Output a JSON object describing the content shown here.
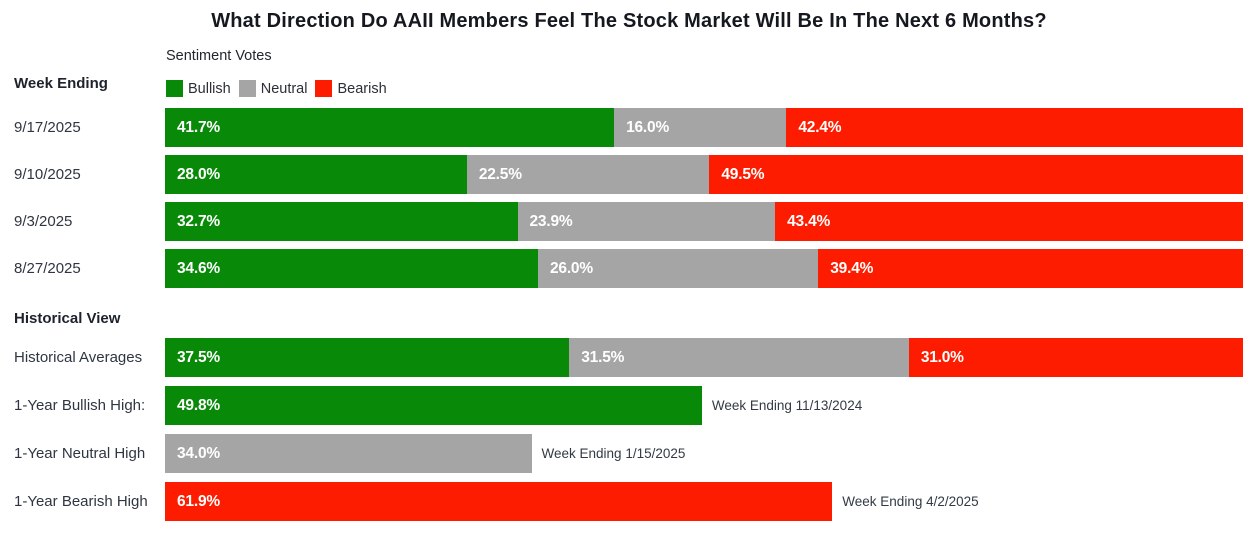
{
  "title": "What Direction Do AAII Members Feel The Stock Market Will Be In The Next 6 Months?",
  "legend": {
    "title": "Sentiment Votes",
    "items": [
      {
        "label": "Bullish",
        "color": "#088a08"
      },
      {
        "label": "Neutral",
        "color": "#a5a5a5"
      },
      {
        "label": "Bearish",
        "color": "#fd1c00"
      }
    ]
  },
  "chart_data": {
    "type": "bar",
    "orientation": "horizontal",
    "stacked": true,
    "title": "What Direction Do AAII Members Feel The Stock Market Will Be In The Next 6 Months?",
    "legend_title": "Sentiment Votes",
    "legend_position": "top-left",
    "series_names": [
      "Bullish",
      "Neutral",
      "Bearish"
    ],
    "series_colors": {
      "Bullish": "#088a08",
      "Neutral": "#a5a5a5",
      "Bearish": "#fd1c00"
    },
    "xlim": [
      0,
      100
    ],
    "unit": "%",
    "grid": false,
    "groups": [
      {
        "header": "Week Ending",
        "rows": [
          {
            "label": "9/17/2025",
            "segments": [
              {
                "series": "Bullish",
                "value": 41.7,
                "text": "41.7%"
              },
              {
                "series": "Neutral",
                "value": 16.0,
                "text": "16.0%"
              },
              {
                "series": "Bearish",
                "value": 42.4,
                "text": "42.4%"
              }
            ]
          },
          {
            "label": "9/10/2025",
            "segments": [
              {
                "series": "Bullish",
                "value": 28.0,
                "text": "28.0%"
              },
              {
                "series": "Neutral",
                "value": 22.5,
                "text": "22.5%"
              },
              {
                "series": "Bearish",
                "value": 49.5,
                "text": "49.5%"
              }
            ]
          },
          {
            "label": "9/3/2025",
            "segments": [
              {
                "series": "Bullish",
                "value": 32.7,
                "text": "32.7%"
              },
              {
                "series": "Neutral",
                "value": 23.9,
                "text": "23.9%"
              },
              {
                "series": "Bearish",
                "value": 43.4,
                "text": "43.4%"
              }
            ]
          },
          {
            "label": "8/27/2025",
            "segments": [
              {
                "series": "Bullish",
                "value": 34.6,
                "text": "34.6%"
              },
              {
                "series": "Neutral",
                "value": 26.0,
                "text": "26.0%"
              },
              {
                "series": "Bearish",
                "value": 39.4,
                "text": "39.4%"
              }
            ]
          }
        ]
      },
      {
        "header": "Historical View",
        "rows": [
          {
            "label": "Historical Averages",
            "segments": [
              {
                "series": "Bullish",
                "value": 37.5,
                "text": "37.5%"
              },
              {
                "series": "Neutral",
                "value": 31.5,
                "text": "31.5%"
              },
              {
                "series": "Bearish",
                "value": 31.0,
                "text": "31.0%"
              }
            ]
          },
          {
            "label": "1-Year Bullish High:",
            "segments": [
              {
                "series": "Bullish",
                "value": 49.8,
                "text": "49.8%"
              }
            ],
            "annotation": "Week Ending 11/13/2024"
          },
          {
            "label": "1-Year Neutral High",
            "segments": [
              {
                "series": "Neutral",
                "value": 34.0,
                "text": "34.0%"
              }
            ],
            "annotation": "Week Ending 1/15/2025"
          },
          {
            "label": "1-Year Bearish High",
            "segments": [
              {
                "series": "Bearish",
                "value": 61.9,
                "text": "61.9%"
              }
            ],
            "annotation": "Week Ending 4/2/2025"
          }
        ]
      }
    ]
  }
}
